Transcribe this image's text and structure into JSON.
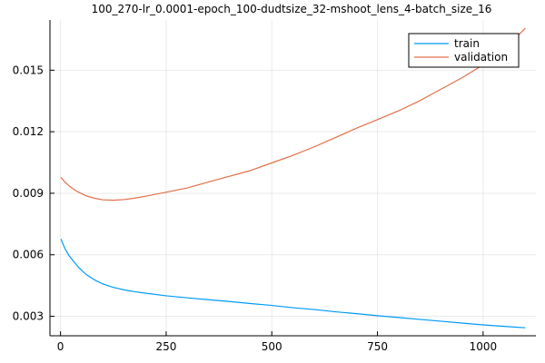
{
  "chart_data": {
    "type": "line",
    "title": "100_270-lr_0.0001-epoch_100-dudtsize_32-mshoot_lens_4-batch_size_16",
    "xlabel": "",
    "ylabel": "",
    "xlim": [
      -25,
      1125
    ],
    "ylim": [
      0.00205,
      0.01745
    ],
    "x_ticks": [
      0,
      250,
      500,
      750,
      1000
    ],
    "x_tick_labels": [
      "0",
      "250",
      "500",
      "750",
      "1000"
    ],
    "y_ticks": [
      0.003,
      0.006,
      0.009,
      0.012,
      0.015
    ],
    "y_tick_labels": [
      "0.003",
      "0.006",
      "0.009",
      "0.012",
      "0.015"
    ],
    "grid": true,
    "legend_position": "top-right",
    "series": [
      {
        "name": "train",
        "color": "#009AFA",
        "x": [
          1,
          10,
          20,
          30,
          40,
          50,
          60,
          80,
          100,
          125,
          150,
          175,
          200,
          250,
          300,
          350,
          400,
          450,
          500,
          550,
          600,
          650,
          700,
          750,
          800,
          850,
          900,
          950,
          1000,
          1050,
          1100
        ],
        "y": [
          0.00677,
          0.00632,
          0.00596,
          0.0057,
          0.00545,
          0.00524,
          0.00505,
          0.00478,
          0.00458,
          0.00441,
          0.00429,
          0.0042,
          0.00413,
          0.004,
          0.0039,
          0.00381,
          0.00372,
          0.00362,
          0.00353,
          0.00342,
          0.00333,
          0.00322,
          0.00313,
          0.00303,
          0.00294,
          0.00285,
          0.00276,
          0.00267,
          0.00258,
          0.00251,
          0.00244
        ]
      },
      {
        "name": "validation",
        "color": "#E26F46",
        "x": [
          1,
          10,
          20,
          30,
          40,
          50,
          60,
          80,
          100,
          125,
          150,
          175,
          200,
          250,
          300,
          350,
          400,
          450,
          500,
          550,
          600,
          650,
          700,
          750,
          800,
          850,
          900,
          950,
          1000,
          1050,
          1100
        ],
        "y": [
          0.00978,
          0.00955,
          0.00937,
          0.00921,
          0.00908,
          0.00898,
          0.00888,
          0.00876,
          0.00868,
          0.00866,
          0.00869,
          0.00876,
          0.00885,
          0.00905,
          0.00926,
          0.00955,
          0.00983,
          0.01011,
          0.01048,
          0.01085,
          0.01126,
          0.01171,
          0.01217,
          0.01259,
          0.01302,
          0.01351,
          0.01407,
          0.01463,
          0.01526,
          0.01602,
          0.01705
        ]
      }
    ]
  }
}
